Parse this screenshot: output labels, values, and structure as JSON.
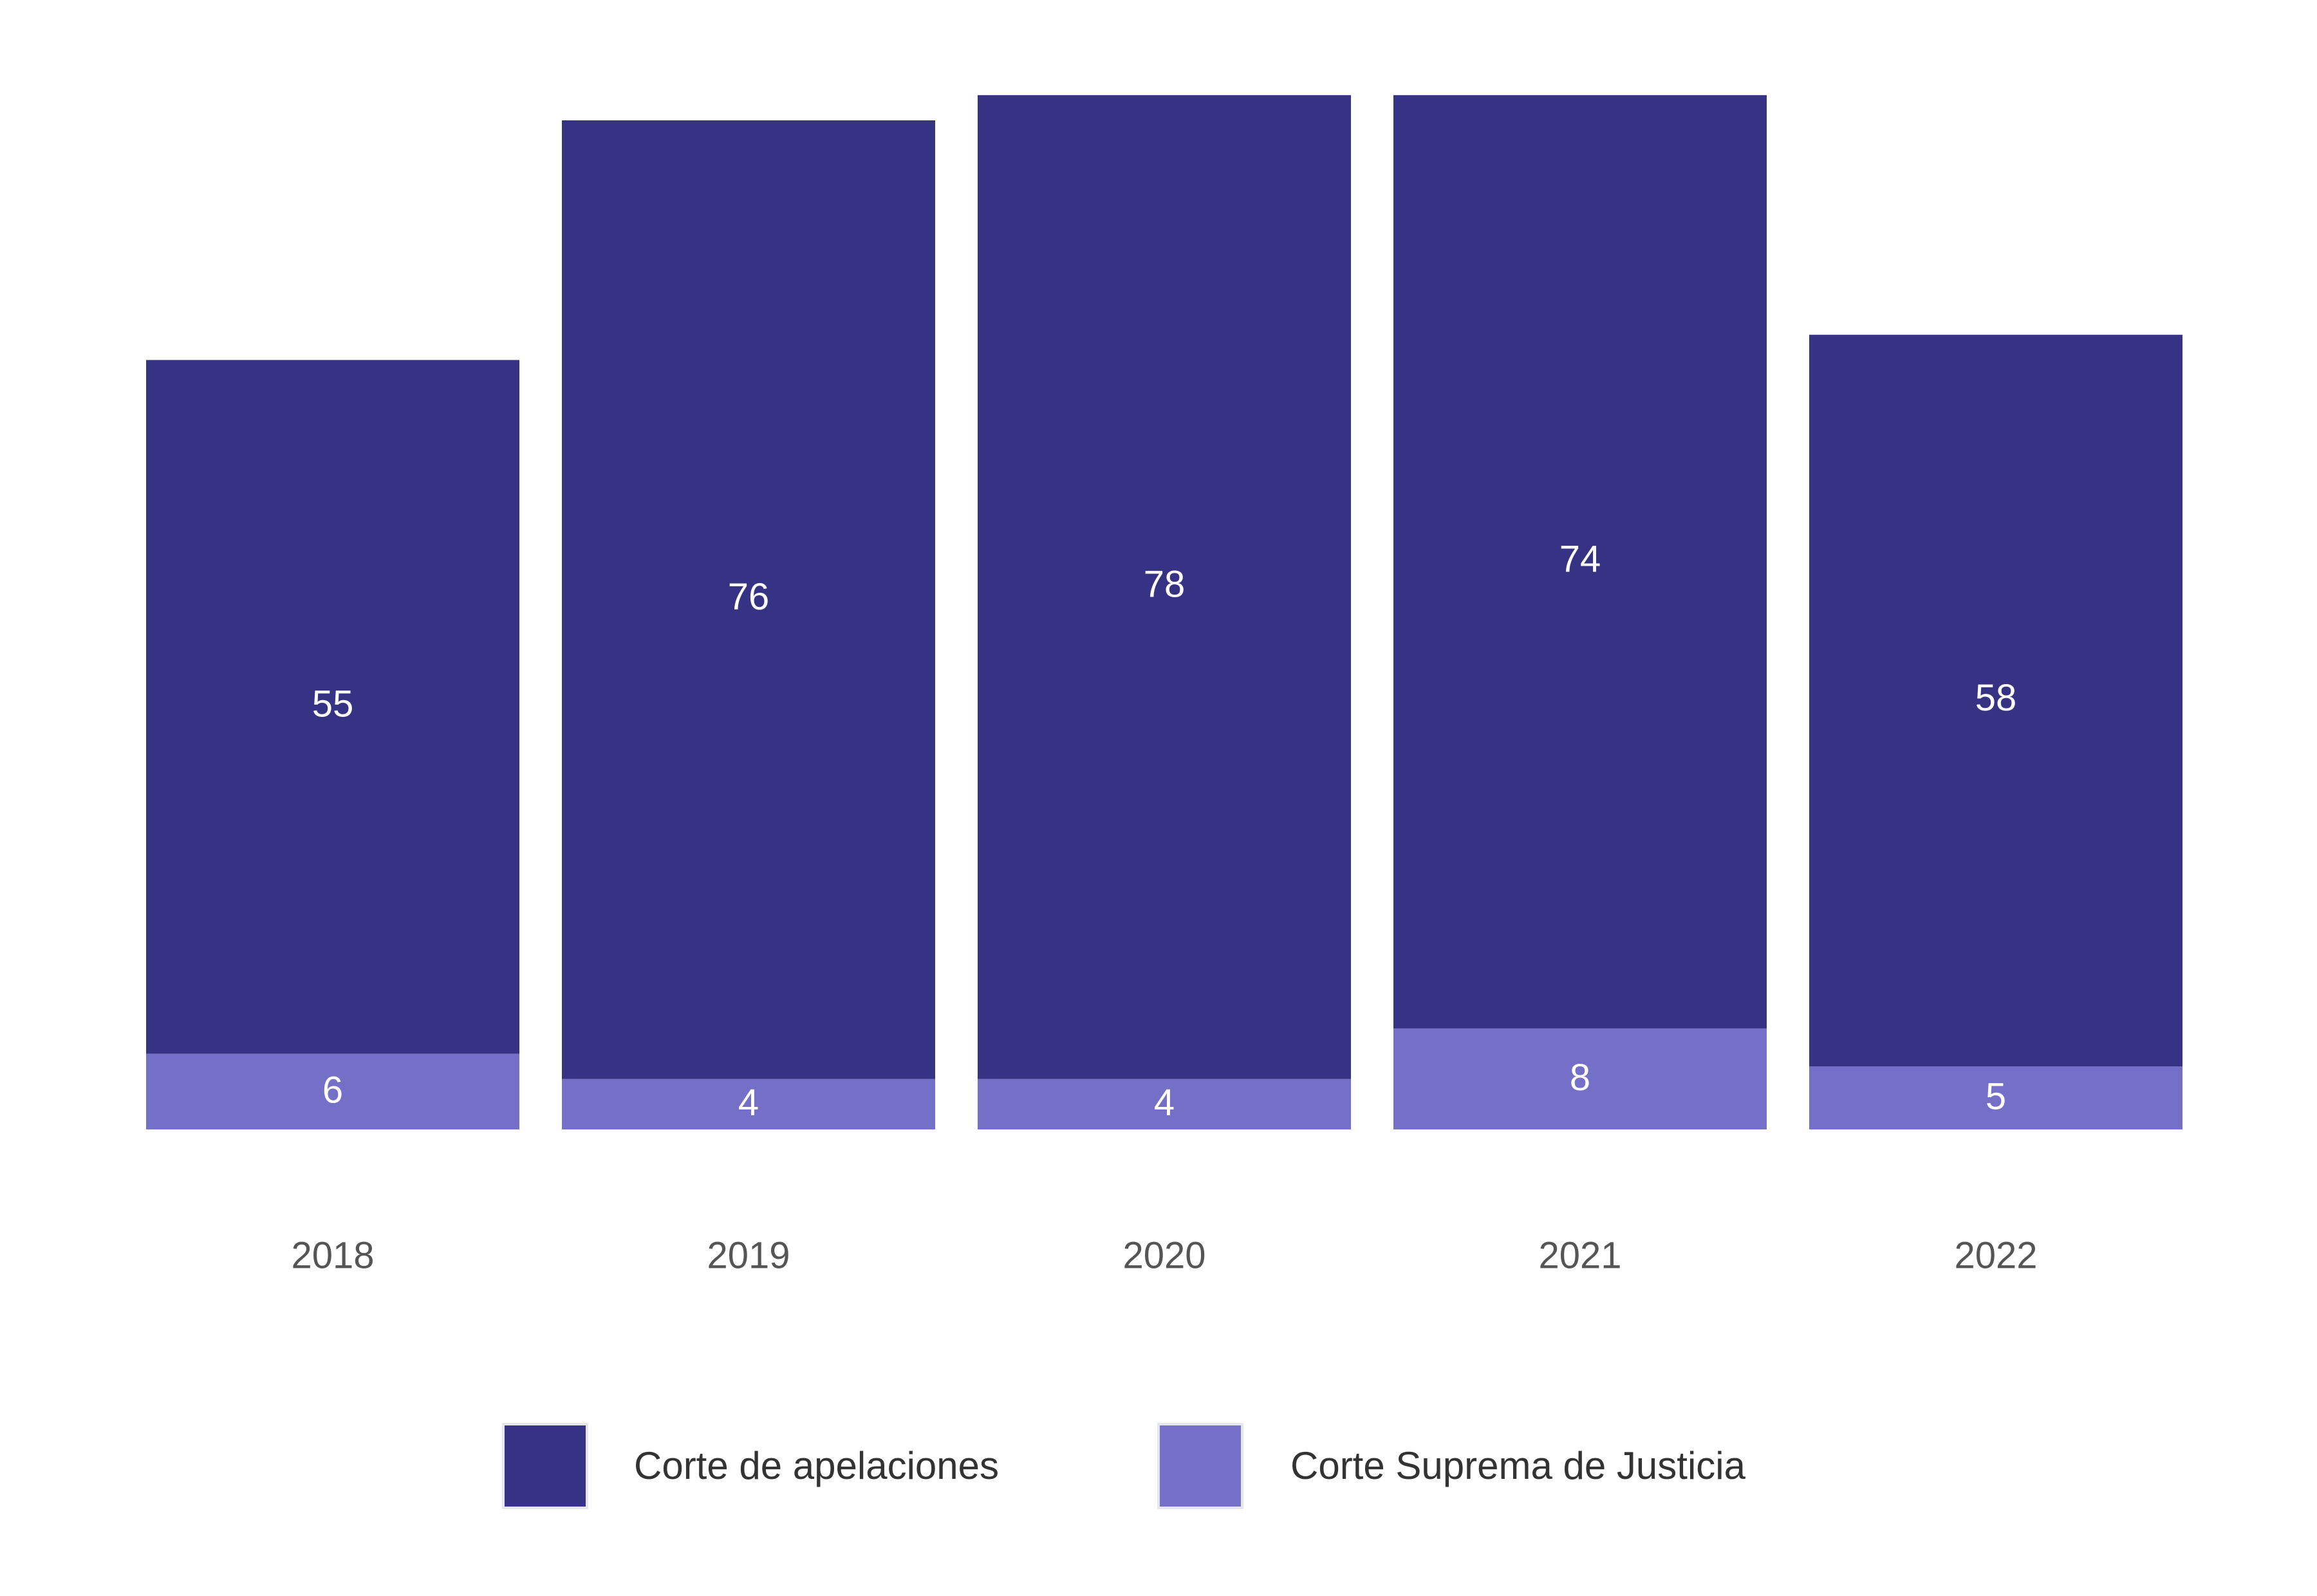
{
  "chart_data": {
    "type": "bar",
    "stacked": true,
    "categories": [
      "2018",
      "2019",
      "2020",
      "2021",
      "2022"
    ],
    "series": [
      {
        "name": "Corte Suprema de Justicia",
        "color": "#7570c7",
        "values": [
          6,
          4,
          4,
          8,
          5
        ]
      },
      {
        "name": "Corte de apelaciones",
        "color": "#363384",
        "values": [
          55,
          76,
          78,
          74,
          58
        ]
      }
    ],
    "title": "",
    "xlabel": "",
    "ylabel": "",
    "ylim": [
      0,
      82
    ],
    "grid": false,
    "legend": {
      "position": "bottom",
      "order": [
        "Corte de apelaciones",
        "Corte Suprema de Justicia"
      ]
    }
  }
}
